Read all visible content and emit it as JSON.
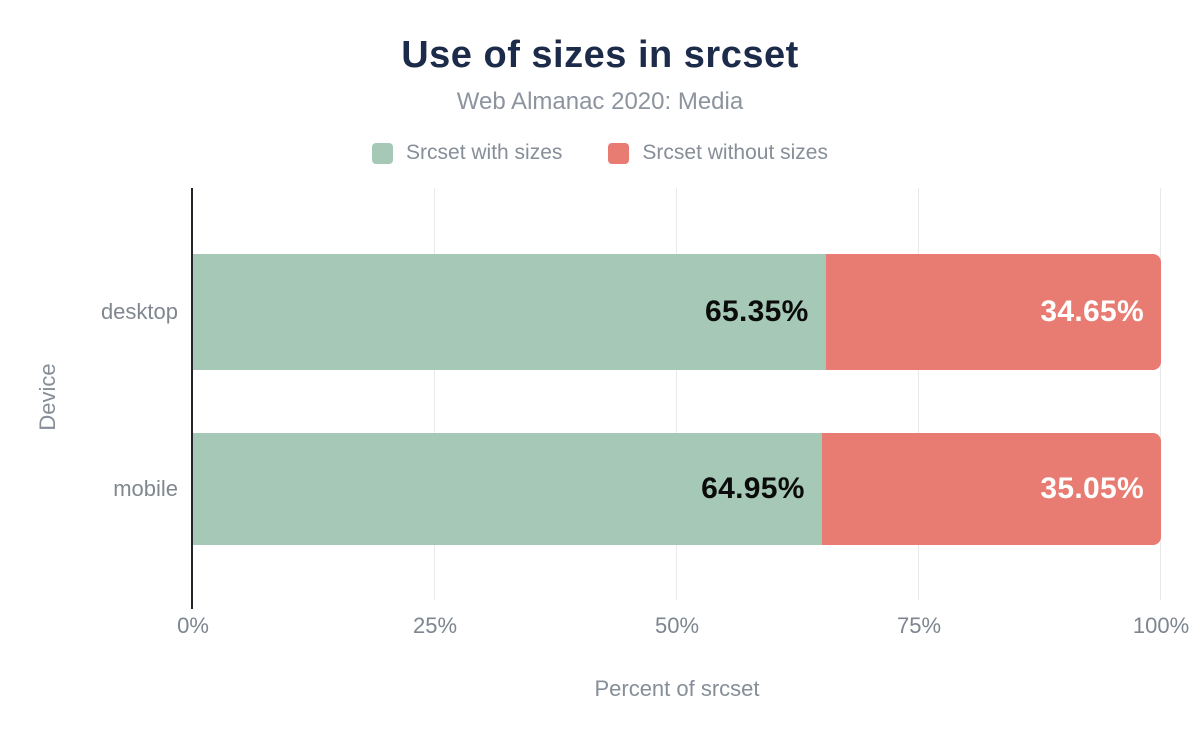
{
  "chart_data": {
    "type": "bar",
    "orientation": "horizontal",
    "stacked": true,
    "title": "Use of sizes in srcset",
    "subtitle": "Web Almanac 2020: Media",
    "categories": [
      "desktop",
      "mobile"
    ],
    "series": [
      {
        "name": "Srcset with sizes",
        "color": "#a5c9b6",
        "label_color": "#0b0b0b",
        "values": [
          65.35,
          64.95
        ],
        "value_labels": [
          "65.35%",
          "64.95%"
        ]
      },
      {
        "name": "Srcset without sizes",
        "color": "#e87c72",
        "label_color": "#ffffff",
        "values": [
          34.65,
          35.05
        ],
        "value_labels": [
          "34.65%",
          "35.05%"
        ]
      }
    ],
    "xlabel": "Percent of srcset",
    "ylabel": "Device",
    "xlim": [
      0,
      100
    ],
    "x_ticks": [
      {
        "value": 0,
        "label": "0%"
      },
      {
        "value": 25,
        "label": "25%"
      },
      {
        "value": 50,
        "label": "50%"
      },
      {
        "value": 75,
        "label": "75%"
      },
      {
        "value": 100,
        "label": "100%"
      }
    ],
    "grid": true,
    "legend_position": "top"
  },
  "colors": {
    "title": "#1c2b4a",
    "secondary_text": "#868e98",
    "gridline": "#e9e9e9",
    "axis_line": "#23252b",
    "background": "#ffffff"
  }
}
